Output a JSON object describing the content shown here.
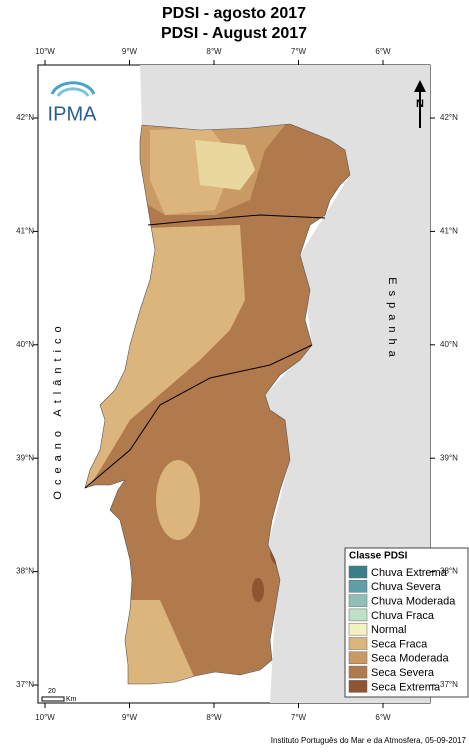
{
  "title": [
    "PDSI - agosto 2017",
    "PDSI - August 2017"
  ],
  "map": {
    "lon_labels": [
      "10°W",
      "9°W",
      "8°W",
      "7°W",
      "6°W"
    ],
    "lat_labels": [
      "42°N",
      "41°N",
      "40°N",
      "39°N",
      "38°N",
      "37°N"
    ],
    "ocean_label": "Oceano Atlântico",
    "land_label": "Espanha",
    "scale_label": "20",
    "scale_unit": "Km",
    "logo": "IPMA",
    "north": "N"
  },
  "legend": {
    "title": "Classe PDSI",
    "items": [
      {
        "label": "Chuva Extrema",
        "color": "#3a7f8a"
      },
      {
        "label": "Chuva Severa",
        "color": "#5e9ea6"
      },
      {
        "label": "Chuva Moderada",
        "color": "#8fc0b8"
      },
      {
        "label": "Chuva Fraca",
        "color": "#bfe0c8"
      },
      {
        "label": "Normal",
        "color": "#f4f0c0"
      },
      {
        "label": "Seca Fraca",
        "color": "#dcb57c"
      },
      {
        "label": "Seca Moderada",
        "color": "#c99a64"
      },
      {
        "label": "Seca Severa",
        "color": "#b07a4c"
      },
      {
        "label": "Seca Extrema",
        "color": "#8f5430"
      }
    ]
  },
  "footer": "Instituto Português do Mar e da Atmosfera, 05-09-2017"
}
